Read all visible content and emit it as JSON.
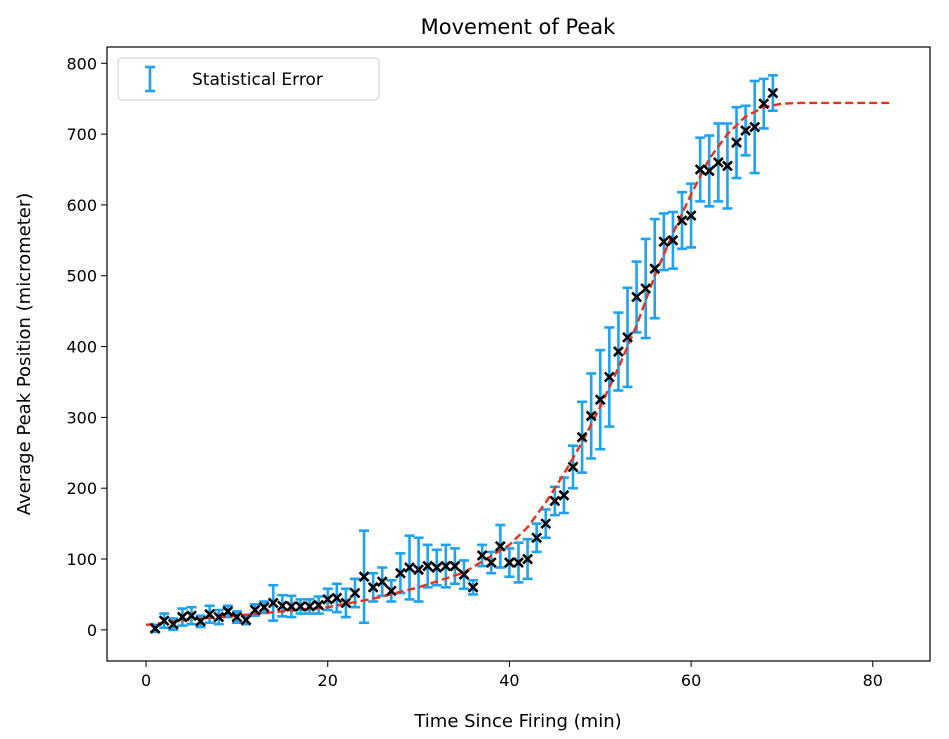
{
  "chart_data": {
    "type": "scatter",
    "title": "Movement of Peak",
    "xlabel": "Time Since Firing (min)",
    "ylabel": "Average Peak Position (micrometer)",
    "xlim": [
      -4.3,
      86.3
    ],
    "ylim": [
      -44,
      823
    ],
    "xticks": [
      0,
      20,
      40,
      60,
      80
    ],
    "yticks": [
      0,
      100,
      200,
      300,
      400,
      500,
      600,
      700,
      800
    ],
    "grid": false,
    "legend": {
      "placement": "top-left",
      "entries": [
        {
          "label": "Statistical Error",
          "color": "#1fa2f2"
        }
      ]
    },
    "colors": {
      "error": "#1fa2f2",
      "marker": "#000000",
      "fit": "#e8321e"
    },
    "series": [
      {
        "kind": "errorbar-points",
        "marker": "x",
        "x": [
          1,
          2,
          3,
          4,
          5,
          6,
          7,
          8,
          9,
          10,
          11,
          12,
          13,
          14,
          15,
          16,
          17,
          18,
          19,
          20,
          21,
          22,
          23,
          24,
          25,
          26,
          27,
          28,
          29,
          30,
          31,
          32,
          33,
          34,
          35,
          36,
          37,
          38,
          39,
          40,
          41,
          42,
          43,
          44,
          45,
          46,
          47,
          48,
          49,
          50,
          51,
          52,
          53,
          54,
          55,
          56,
          57,
          58,
          59,
          60,
          61,
          62,
          63,
          64,
          65,
          66,
          67,
          68,
          69
        ],
        "y": [
          2,
          13,
          8,
          18,
          20,
          12,
          22,
          18,
          26,
          18,
          14,
          28,
          32,
          38,
          34,
          33,
          33,
          33,
          35,
          43,
          45,
          38,
          52,
          75,
          60,
          68,
          55,
          80,
          88,
          85,
          90,
          88,
          90,
          90,
          78,
          60,
          105,
          95,
          118,
          95,
          95,
          100,
          130,
          150,
          182,
          190,
          230,
          272,
          302,
          325,
          357,
          393,
          413,
          470,
          482,
          510,
          548,
          550,
          578,
          585,
          650,
          648,
          660,
          655,
          688,
          705,
          710,
          743,
          758
        ],
        "yerr": [
          5,
          10,
          8,
          12,
          12,
          8,
          12,
          10,
          8,
          8,
          6,
          8,
          8,
          25,
          15,
          15,
          10,
          10,
          12,
          15,
          20,
          20,
          20,
          65,
          20,
          20,
          15,
          28,
          45,
          45,
          30,
          25,
          30,
          25,
          20,
          10,
          15,
          15,
          30,
          20,
          28,
          28,
          20,
          20,
          20,
          25,
          30,
          50,
          60,
          70,
          70,
          55,
          70,
          50,
          70,
          70,
          40,
          40,
          40,
          45,
          45,
          50,
          55,
          60,
          50,
          35,
          65,
          35,
          25
        ]
      },
      {
        "kind": "fit-line",
        "style": "dashed",
        "x": [
          0,
          5,
          10,
          15,
          20,
          25,
          30,
          35,
          40,
          42,
          44,
          46,
          48,
          50,
          52,
          54,
          56,
          58,
          60,
          62,
          64,
          66,
          68,
          70,
          72,
          74,
          76,
          78,
          80,
          82
        ],
        "y": [
          7,
          15,
          20,
          26,
          32,
          44,
          60,
          81,
          120,
          145,
          180,
          220,
          265,
          315,
          370,
          430,
          500,
          560,
          615,
          665,
          700,
          725,
          738,
          743,
          744,
          744,
          744,
          744,
          744,
          744
        ]
      }
    ]
  }
}
